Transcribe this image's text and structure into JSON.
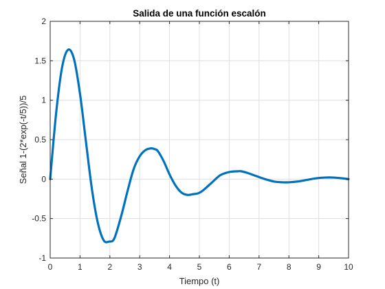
{
  "chart_data": {
    "type": "line",
    "title": "Salida de una función escalón",
    "xlabel": "Tiempo (t)",
    "ylabel": "Señal 1-(2*exp(-t/5))/5",
    "xlim": [
      0,
      10
    ],
    "ylim": [
      -1,
      2
    ],
    "xticks": [
      0,
      1,
      2,
      3,
      4,
      5,
      6,
      7,
      8,
      9,
      10
    ],
    "xtick_labels": [
      "0",
      "1",
      "2",
      "3",
      "4",
      "5",
      "6",
      "7",
      "8",
      "9",
      "10"
    ],
    "yticks": [
      -1,
      -0.5,
      0,
      0.5,
      1,
      1.5,
      2
    ],
    "ytick_labels": [
      "-1",
      "-0.5",
      "0",
      "0.5",
      "1",
      "1.5",
      "2"
    ],
    "grid": true,
    "series": [
      {
        "color": "#0072bd",
        "x": [
          0,
          0.2,
          0.4,
          0.6,
          0.8,
          1.0,
          1.2,
          1.4,
          1.6,
          1.8,
          2.0,
          2.1,
          2.2,
          2.4,
          2.6,
          2.8,
          3.0,
          3.2,
          3.4,
          3.5,
          3.6,
          3.8,
          4.0,
          4.2,
          4.4,
          4.6,
          4.8,
          4.95,
          5.1,
          5.4,
          5.7,
          6.0,
          6.3,
          6.4,
          6.6,
          6.9,
          7.2,
          7.5,
          7.8,
          8.0,
          8.3,
          8.6,
          8.9,
          9.2,
          9.5,
          9.8,
          10.0
        ],
        "y": [
          0.0,
          0.84,
          1.42,
          1.64,
          1.52,
          1.08,
          0.47,
          -0.13,
          -0.56,
          -0.78,
          -0.79,
          -0.78,
          -0.7,
          -0.44,
          -0.14,
          0.13,
          0.29,
          0.37,
          0.39,
          0.38,
          0.36,
          0.23,
          0.06,
          -0.08,
          -0.17,
          -0.2,
          -0.19,
          -0.18,
          -0.15,
          -0.05,
          0.05,
          0.09,
          0.1,
          0.1,
          0.08,
          0.04,
          0.0,
          -0.03,
          -0.04,
          -0.04,
          -0.03,
          -0.01,
          0.01,
          0.02,
          0.02,
          0.01,
          0.0
        ]
      }
    ]
  }
}
